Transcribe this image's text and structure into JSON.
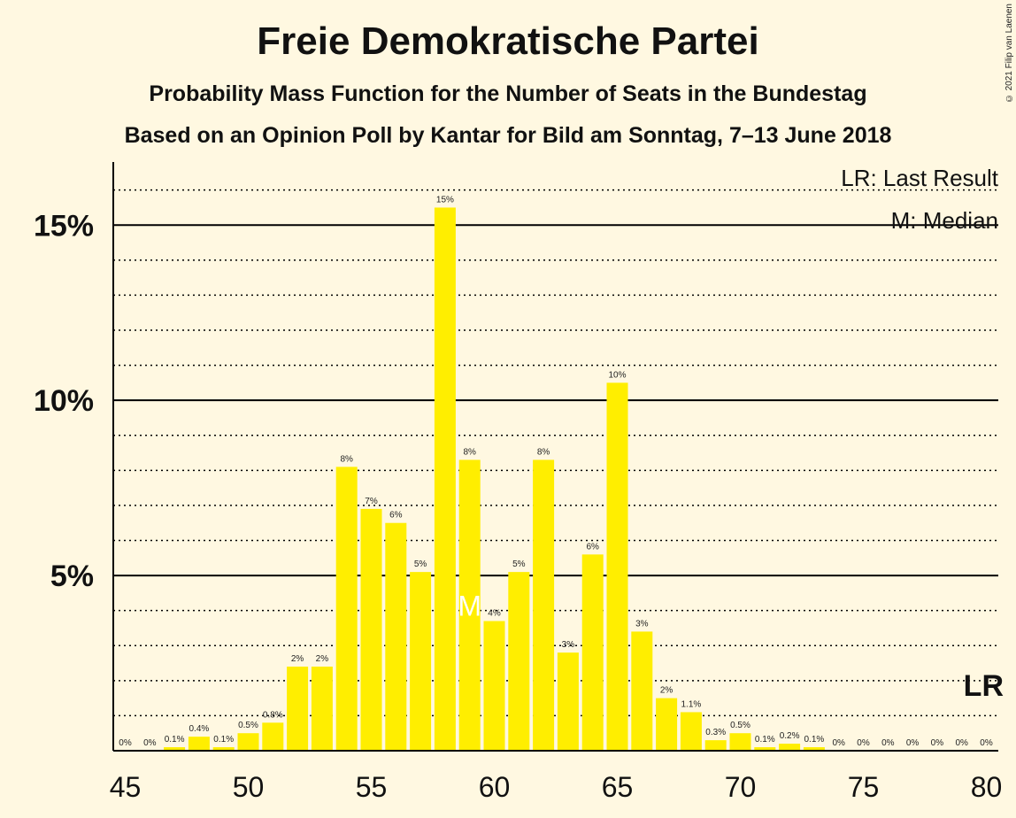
{
  "title": "Freie Demokratische Partei",
  "subtitle": "Probability Mass Function for the Number of Seats in the Bundestag",
  "subtitle2": "Based on an Opinion Poll by Kantar for Bild am Sonntag, 7–13 June 2018",
  "copyright": "© 2021 Filip van Laenen",
  "legend": {
    "last_result": "LR: Last Result",
    "median": "M: Median"
  },
  "colors": {
    "bar": "#FFEE00",
    "background": "#FFF8E1",
    "text": "#111111"
  },
  "chart_data": {
    "type": "bar",
    "title": "Freie Demokratische Partei",
    "x": [
      45,
      46,
      47,
      48,
      49,
      50,
      51,
      52,
      53,
      54,
      55,
      56,
      57,
      58,
      59,
      60,
      61,
      62,
      63,
      64,
      65,
      66,
      67,
      68,
      69,
      70,
      71,
      72,
      73,
      74,
      75,
      76,
      77,
      78,
      79,
      80
    ],
    "values": [
      0,
      0,
      0.1,
      0.4,
      0.1,
      0.5,
      0.8,
      2.4,
      2.4,
      8.1,
      6.9,
      6.5,
      5.1,
      15.5,
      8.3,
      3.7,
      5.1,
      8.3,
      2.8,
      5.6,
      10.5,
      3.4,
      1.5,
      1.1,
      0.3,
      0.5,
      0.1,
      0.2,
      0.1,
      0,
      0,
      0,
      0,
      0,
      0,
      0
    ],
    "labels": [
      "0%",
      "0%",
      "0.1%",
      "0.4%",
      "0.1%",
      "0.5%",
      "0.8%",
      "2%",
      "2%",
      "8%",
      "7%",
      "6%",
      "5%",
      "15%",
      "8%",
      "4%",
      "5%",
      "8%",
      "3%",
      "6%",
      "10%",
      "3%",
      "2%",
      "1.1%",
      "0.3%",
      "0.5%",
      "0.1%",
      "0.2%",
      "0.1%",
      "0%",
      "0%",
      "0%",
      "0%",
      "0%",
      "0%",
      "0%"
    ],
    "x_ticks": [
      45,
      50,
      55,
      60,
      65,
      70,
      75,
      80
    ],
    "y_ticks": [
      {
        "value": 5,
        "label": "5%"
      },
      {
        "value": 10,
        "label": "10%"
      },
      {
        "value": 15,
        "label": "15%"
      }
    ],
    "ylim": [
      0,
      16.8
    ],
    "grid": "dotted every 1%, solid every 5%",
    "median_seat": 59,
    "median_marker": "M",
    "last_result_seat": 80,
    "last_result_marker": "LR"
  }
}
